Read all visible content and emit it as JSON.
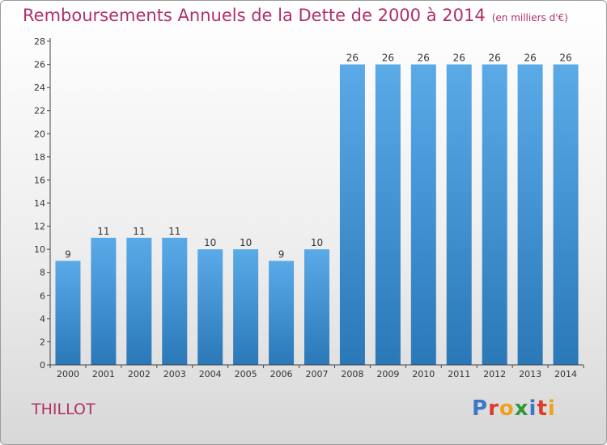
{
  "title": "Remboursements Annuels de la Dette de 2000 à 2014",
  "subtitle": "(en milliers d'€)",
  "commune": "THILLOT",
  "logo": {
    "letters": [
      {
        "ch": "P",
        "color": "#3a78c8"
      },
      {
        "ch": "r",
        "color": "#e03a2a"
      },
      {
        "ch": "o",
        "color": "#f0a020"
      },
      {
        "ch": "x",
        "color": "#2a9a3a"
      },
      {
        "ch": "i",
        "color": "#3a78c8"
      },
      {
        "ch": "t",
        "color": "#e03a2a"
      },
      {
        "ch": "i",
        "color": "#f0a020"
      }
    ]
  },
  "chart_data": {
    "type": "bar",
    "categories": [
      "2000",
      "2001",
      "2002",
      "2003",
      "2004",
      "2005",
      "2006",
      "2007",
      "2008",
      "2009",
      "2010",
      "2011",
      "2012",
      "2013",
      "2014"
    ],
    "values": [
      9,
      11,
      11,
      11,
      10,
      10,
      9,
      10,
      26,
      26,
      26,
      26,
      26,
      26,
      26
    ],
    "data_labels": [
      "9",
      "11",
      "11",
      "11",
      "10",
      "10",
      "9",
      "10",
      "26",
      "26",
      "26",
      "26",
      "26",
      "26",
      "26"
    ],
    "yticks": [
      "0",
      "2",
      "4",
      "6",
      "8",
      "10",
      "12",
      "14",
      "16",
      "18",
      "20",
      "22",
      "24",
      "26",
      "28"
    ],
    "ylim": [
      0,
      28
    ],
    "grid": false,
    "colors": {
      "bar_light": "#5aaae8",
      "bar_dark": "#2a78b8",
      "axis": "#444444",
      "text": "#333333",
      "title": "#b0306a"
    }
  }
}
